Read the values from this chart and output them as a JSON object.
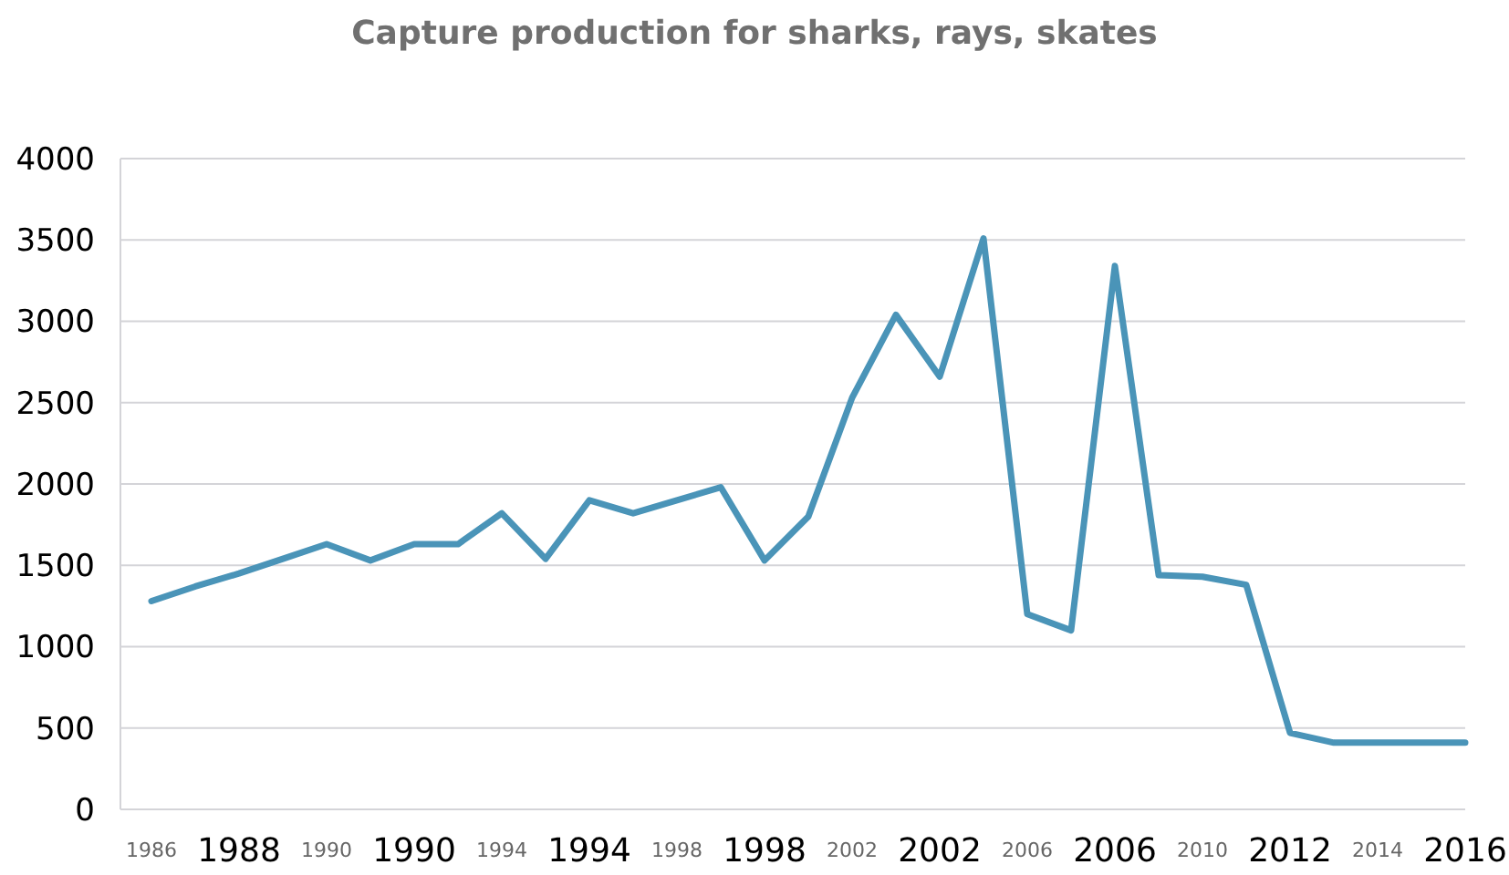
{
  "chart_data": {
    "type": "line",
    "title": "Capture production for sharks, rays, skates",
    "categories": [
      "1986",
      null,
      "1988",
      null,
      "1990",
      null,
      "1990",
      null,
      "1994",
      null,
      "1994",
      null,
      "1998",
      null,
      "1998",
      null,
      "2002",
      null,
      "2002",
      null,
      "2006",
      null,
      "2006",
      null,
      "2010",
      null,
      "2012",
      null,
      "2014",
      null,
      "2016"
    ],
    "series": [
      {
        "color": "#4a94b8",
        "values": [
          1280,
          1370,
          1450,
          1540,
          1630,
          1530,
          1630,
          1630,
          1820,
          1540,
          1900,
          1820,
          1900,
          1980,
          1530,
          1800,
          2530,
          3040,
          2660,
          3510,
          1200,
          1100,
          3340,
          1440,
          1430,
          1380,
          470,
          410,
          410,
          410,
          410
        ]
      }
    ],
    "ylim": [
      0,
      4000
    ],
    "yticks": [
      0,
      500,
      1000,
      1500,
      2000,
      2500,
      3000,
      3500,
      4000
    ],
    "grid": "y",
    "marker": "none",
    "line_style": "solid"
  }
}
